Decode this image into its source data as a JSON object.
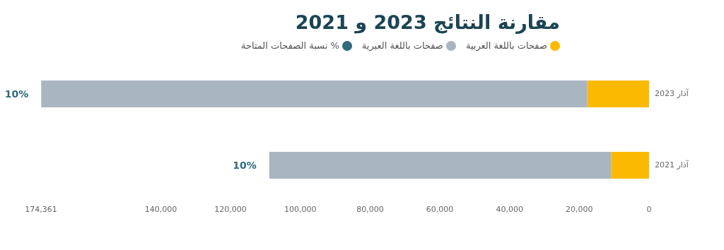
{
  "chart_data": {
    "type": "bar",
    "title": "مقارنة النتائج 2023 و 2021",
    "orientation": "horizontal",
    "stacked": true,
    "categories": [
      "آذار 2023",
      "آذار 2021"
    ],
    "series": [
      {
        "name": "صفحات باللغة العربية",
        "color": "#fbb900",
        "values": [
          17700,
          10900
        ]
      },
      {
        "name": "صفحات باللغة العبرية",
        "color": "#aab5c2",
        "values": [
          156600,
          98000
        ]
      },
      {
        "name": "% نسبة الصفحات المتاحة",
        "color": "#2f6b78",
        "values": [
          null,
          null
        ],
        "value_labels": [
          "10%",
          "10%"
        ]
      }
    ],
    "xlim": [
      174361,
      0
    ],
    "xticks": [
      {
        "value": 174361,
        "label": "174,361"
      },
      {
        "value": 140000,
        "label": "140,000"
      },
      {
        "value": 120000,
        "label": "120,000"
      },
      {
        "value": 100000,
        "label": "100,000"
      },
      {
        "value": 80000,
        "label": "80,000"
      },
      {
        "value": 60000,
        "label": "60,000"
      },
      {
        "value": 40000,
        "label": "40,000"
      },
      {
        "value": 20000,
        "label": "20,000"
      },
      {
        "value": 0,
        "label": "0"
      }
    ],
    "legend": "top"
  }
}
